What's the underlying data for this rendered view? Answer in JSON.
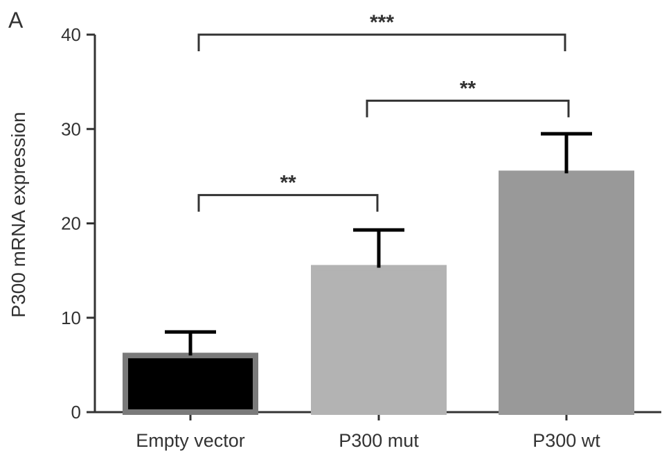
{
  "chart_data": {
    "type": "bar",
    "panel_label": "A",
    "ylabel": "P300 mRNA expression",
    "xlabel": "",
    "categories": [
      "Empty vector",
      "P300 mut",
      "P300 wt"
    ],
    "values": [
      6.0,
      15.3,
      25.3
    ],
    "errors": [
      2.5,
      4.0,
      4.2
    ],
    "bar_colors": [
      "#000000",
      "#b3b3b3",
      "#999999"
    ],
    "bar_edge_colors": [
      "#7a7a7a",
      "#b3b3b3",
      "#999999"
    ],
    "ylim": [
      0,
      40
    ],
    "yticks": [
      0,
      10,
      20,
      30,
      40
    ],
    "grid": false,
    "significance": [
      {
        "from": 0,
        "to": 1,
        "y": 23,
        "label": "**"
      },
      {
        "from": 1,
        "to": 2,
        "y": 33,
        "label": "**"
      },
      {
        "from": 0,
        "to": 2,
        "y": 40,
        "label": "***"
      }
    ]
  }
}
